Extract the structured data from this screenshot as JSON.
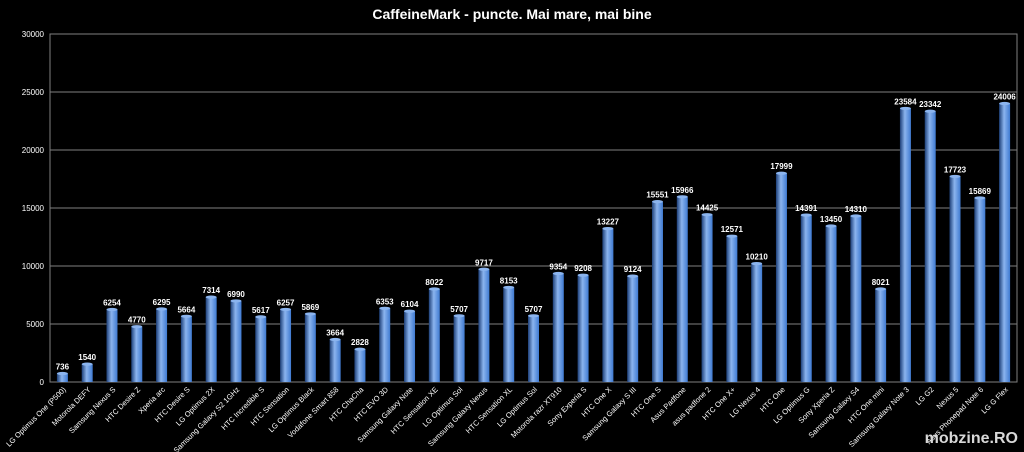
{
  "chart_data": {
    "type": "bar",
    "title": "CaffeineMark - puncte. Mai mare, mai bine",
    "xlabel": "",
    "ylabel": "",
    "ylim": [
      0,
      30000
    ],
    "yticks": [
      0,
      5000,
      10000,
      15000,
      20000,
      25000,
      30000
    ],
    "grid": true,
    "legend": "none",
    "colors": {
      "bar": "#3f7ad1",
      "bar_light": "#8bb4ee",
      "bar_dark": "#1d3f78",
      "background": "#000000",
      "grid": "#7f7f7f",
      "text": "#ffffff"
    },
    "categories": [
      "LG Optimus One (P500)",
      "Motorola DEFY",
      "Samsung Nexus S",
      "HTC Desire Z",
      "Xperia arc",
      "HTC Desire S",
      "LG Optimus 2X",
      "Samsung Galaxy S2 1GHz",
      "HTC Incredible S",
      "HTC Sensation",
      "LG Optimus Black",
      "Vodafone Smart 858",
      "HTC ChaCha",
      "HTC EVO 3D",
      "Samsung Galaxy Note",
      "HTC Sensation XE",
      "LG Optimus Sol",
      "Samsung Galaxy Nexus",
      "HTC Sensation XL",
      "LG Optimus Sol",
      "Motorola razr XT910",
      "Sony Experia S",
      "HTC One X",
      "Samsung Galaxy S III",
      "HTC One S",
      "Asus Padfone",
      "asus padfone 2",
      "HTC One X+",
      "LG Nexus 4",
      "HTC One",
      "LG Optimus G",
      "Sony Xperia Z",
      "Samsung Galaxy S4",
      "HTC One mini",
      "Samsung Galaxy Note 3",
      "LG G2",
      "Nexus 5",
      "Asus Phonepad Note 6",
      "LG G Flex"
    ],
    "values": [
      736,
      1540,
      6254,
      4770,
      6295,
      5664,
      7314,
      6990,
      5617,
      6257,
      5869,
      3664,
      2828,
      6353,
      6104,
      8022,
      5707,
      9717,
      8153,
      5707,
      9354,
      9208,
      13227,
      9124,
      15551,
      15966,
      14425,
      12571,
      10210,
      17999,
      14391,
      13450,
      14310,
      8021,
      23584,
      23342,
      17723,
      15869,
      24006
    ]
  },
  "watermark": "mobzine.RO"
}
